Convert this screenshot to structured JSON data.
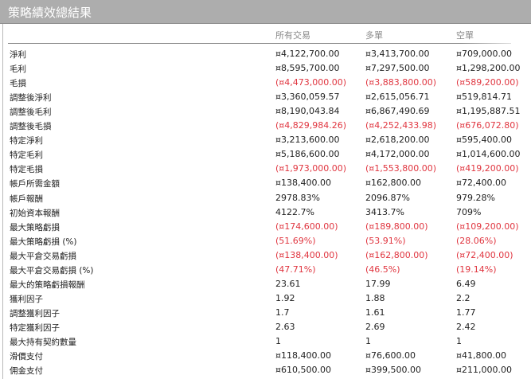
{
  "title": "策略績效總結果",
  "columns": [
    "所有交易",
    "多單",
    "空單"
  ],
  "colors": {
    "negative": "#e0353f",
    "header_bg": "#adadad"
  },
  "rows": [
    {
      "label": "淨利",
      "values": [
        "¤4,122,700.00",
        "¤3,413,700.00",
        "¤709,000.00"
      ]
    },
    {
      "label": "毛利",
      "values": [
        "¤8,595,700.00",
        "¤7,297,500.00",
        "¤1,298,200.00"
      ]
    },
    {
      "label": "毛損",
      "values": [
        "(¤4,473,000.00)",
        "(¤3,883,800.00)",
        "(¤589,200.00)"
      ]
    },
    {
      "label": "調整後淨利",
      "values": [
        "¤3,360,059.57",
        "¤2,615,056.71",
        "¤519,814.71"
      ]
    },
    {
      "label": "調整後毛利",
      "values": [
        "¤8,190,043.84",
        "¤6,867,490.69",
        "¤1,195,887.51"
      ]
    },
    {
      "label": "調整後毛損",
      "values": [
        "(¤4,829,984.26)",
        "(¤4,252,433.98)",
        "(¤676,072.80)"
      ]
    },
    {
      "label": "特定淨利",
      "values": [
        "¤3,213,600.00",
        "¤2,618,200.00",
        "¤595,400.00"
      ]
    },
    {
      "label": "特定毛利",
      "values": [
        "¤5,186,600.00",
        "¤4,172,000.00",
        "¤1,014,600.00"
      ]
    },
    {
      "label": "特定毛損",
      "values": [
        "(¤1,973,000.00)",
        "(¤1,553,800.00)",
        "(¤419,200.00)"
      ]
    },
    {
      "label": "帳戶所需金額",
      "values": [
        "¤138,400.00",
        "¤162,800.00",
        "¤72,400.00"
      ]
    },
    {
      "label": "帳戶報酬",
      "values": [
        "2978.83%",
        "2096.87%",
        "979.28%"
      ]
    },
    {
      "label": "初始資本報酬",
      "values": [
        "4122.7%",
        "3413.7%",
        "709%"
      ]
    },
    {
      "label": "最大策略虧損",
      "values": [
        "(¤174,600.00)",
        "(¤189,800.00)",
        "(¤109,200.00)"
      ]
    },
    {
      "label": "最大策略虧損 (%)",
      "values": [
        "(51.69%)",
        "(53.91%)",
        "(28.06%)"
      ]
    },
    {
      "label": "最大平倉交易虧損",
      "values": [
        "(¤138,400.00)",
        "(¤162,800.00)",
        "(¤72,400.00)"
      ]
    },
    {
      "label": "最大平倉交易虧損 (%)",
      "values": [
        "(47.71%)",
        "(46.5%)",
        "(19.14%)"
      ]
    },
    {
      "label": "最大的策略虧損報酬",
      "values": [
        "23.61",
        "17.99",
        "6.49"
      ]
    },
    {
      "label": "獲利因子",
      "values": [
        "1.92",
        "1.88",
        "2.2"
      ]
    },
    {
      "label": "調整獲利因子",
      "values": [
        "1.7",
        "1.61",
        "1.77"
      ]
    },
    {
      "label": "特定獲利因子",
      "values": [
        "2.63",
        "2.69",
        "2.42"
      ]
    },
    {
      "label": "最大持有契約數量",
      "values": [
        "1",
        "1",
        "1"
      ]
    },
    {
      "label": "滑價支付",
      "values": [
        "¤118,400.00",
        "¤76,600.00",
        "¤41,800.00"
      ]
    },
    {
      "label": "佣金支付",
      "values": [
        "¤610,500.00",
        "¤399,500.00",
        "¤211,000.00"
      ]
    }
  ]
}
